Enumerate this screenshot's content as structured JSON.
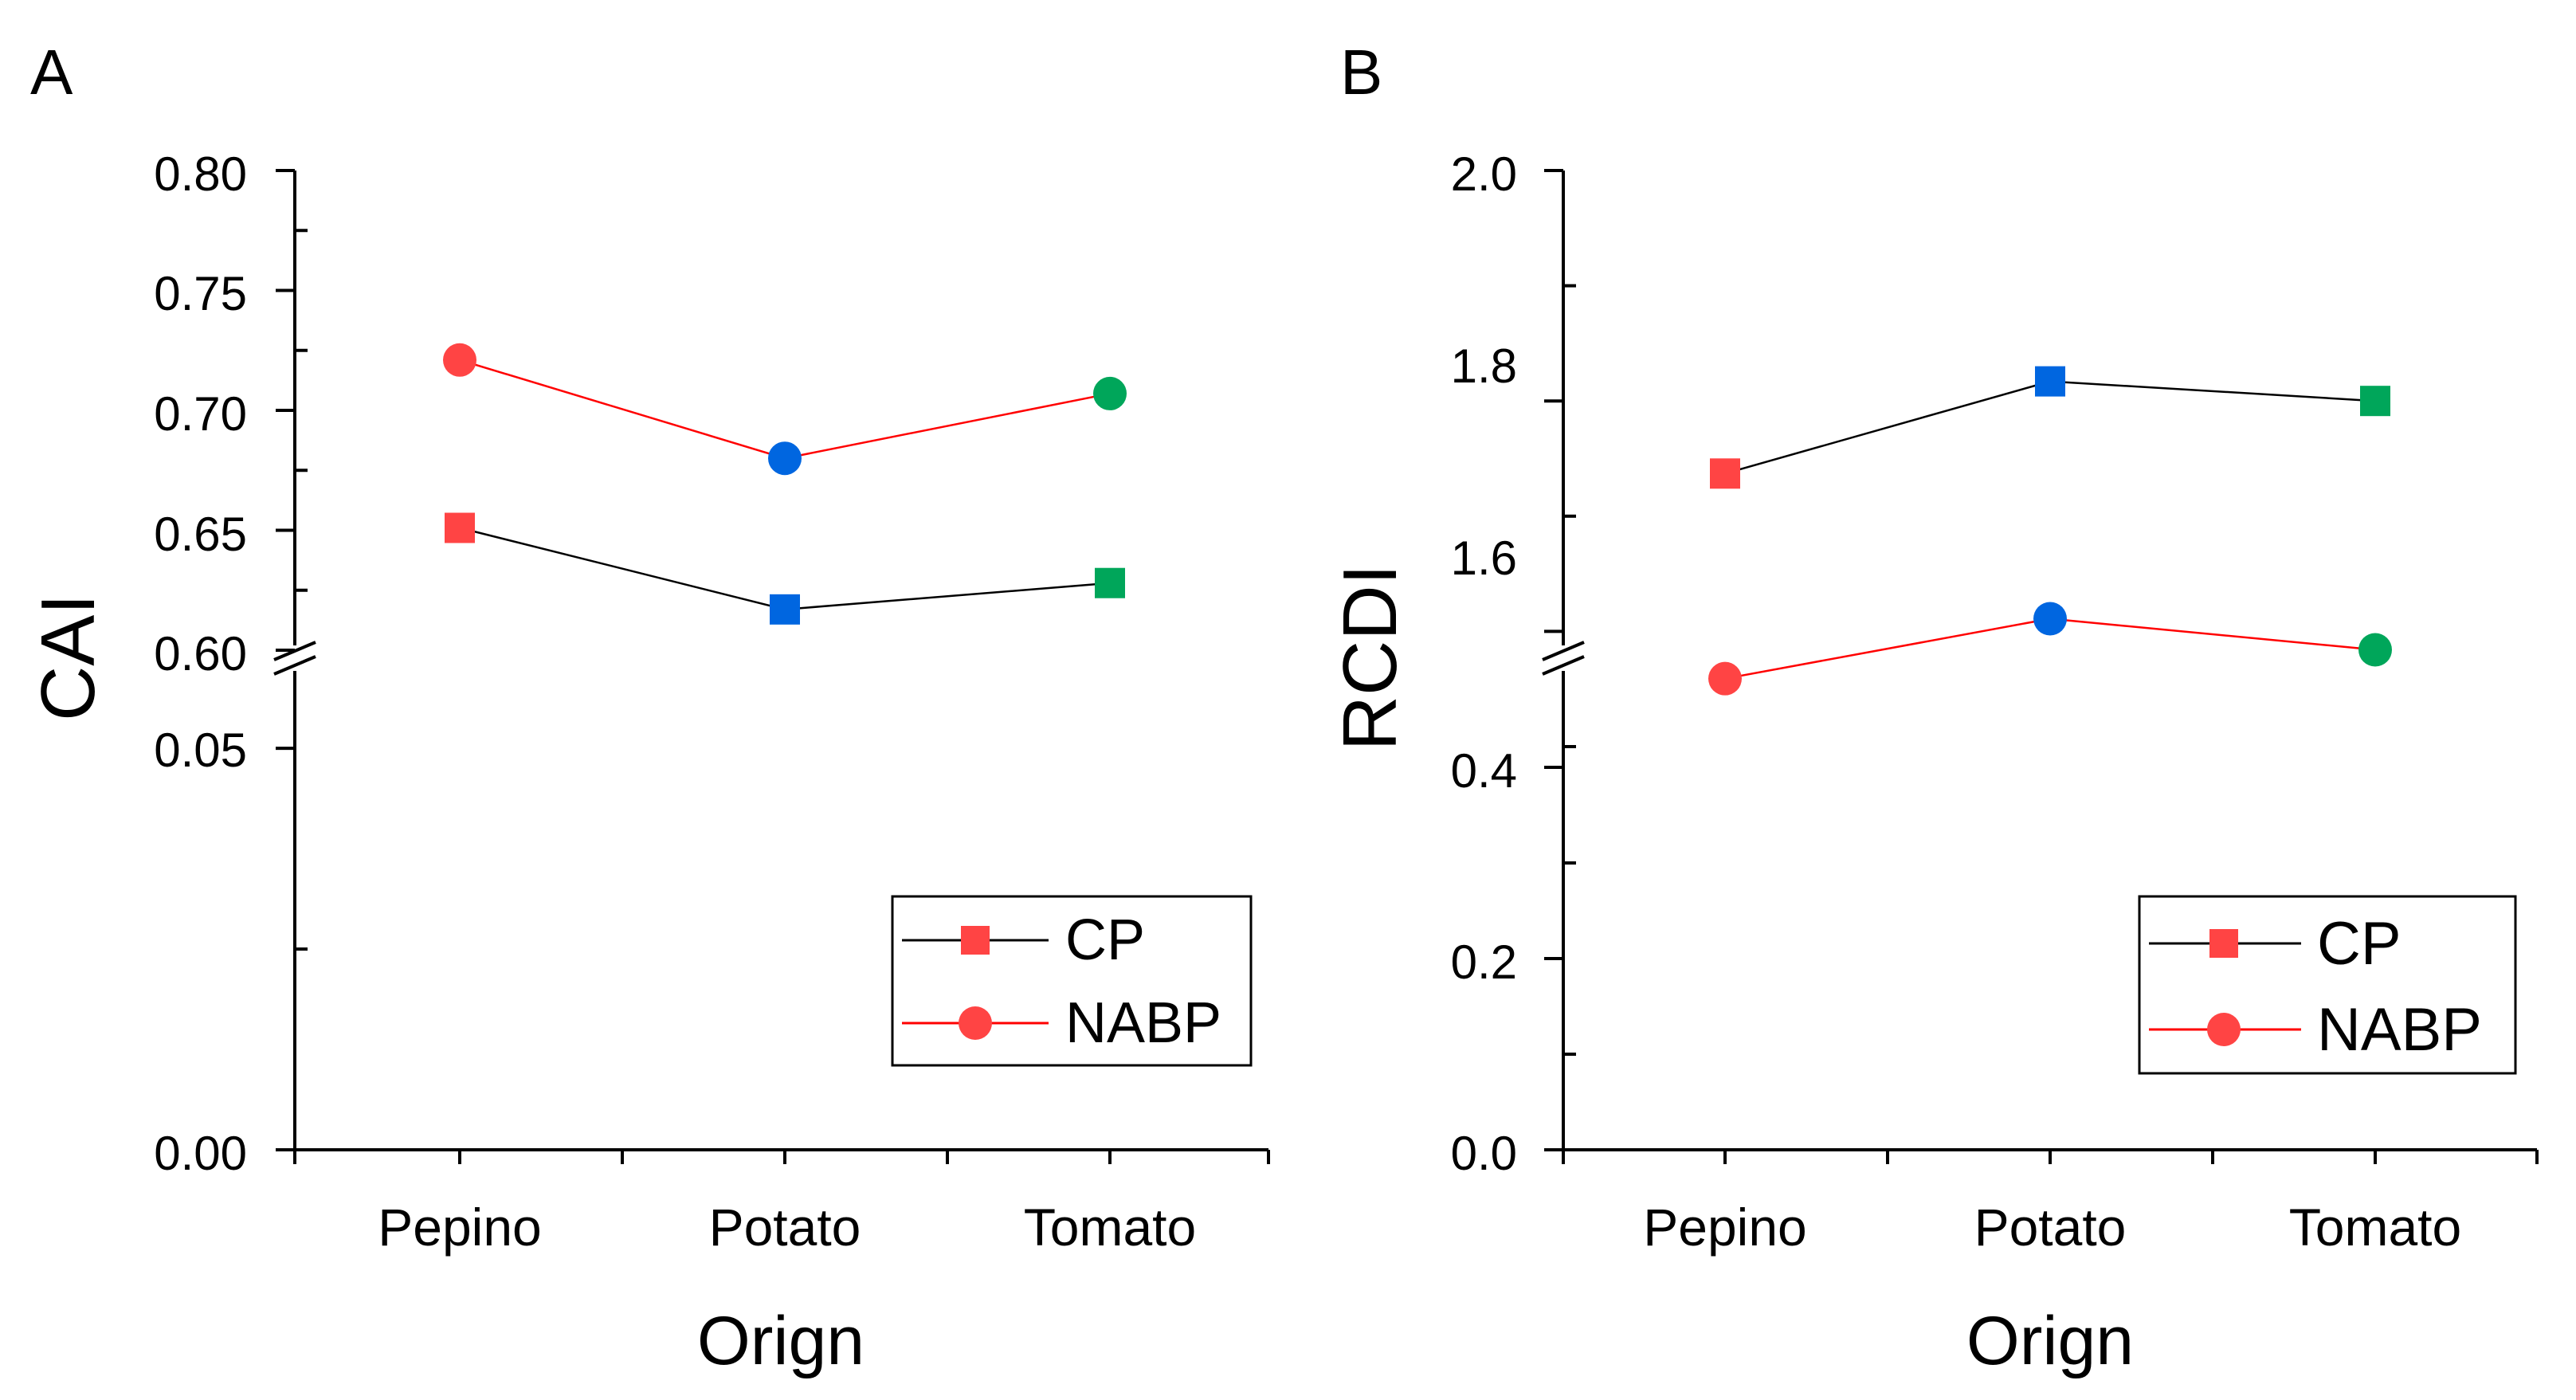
{
  "chart_data": [
    {
      "panel_label": "A",
      "type": "line",
      "xlabel": "Orign",
      "ylabel": "CAI",
      "categories": [
        "Pepino",
        "Potato",
        "Tomato"
      ],
      "point_colors": [
        "#ff4444",
        "#0066e0",
        "#00a65a"
      ],
      "axis_break": true,
      "ylim_lower": [
        0.0,
        0.065
      ],
      "ylim_upper": [
        0.6,
        0.8
      ],
      "yticks": [
        "0.00",
        "0.05",
        "0.60",
        "0.65",
        "0.70",
        "0.75",
        "0.80"
      ],
      "series": [
        {
          "name": "CP",
          "marker": "square",
          "line_color": "#000000",
          "values": [
            0.651,
            0.617,
            0.628
          ]
        },
        {
          "name": "NABP",
          "marker": "circle",
          "line_color": "#ff0000",
          "values": [
            0.721,
            0.68,
            0.707
          ]
        }
      ],
      "legend_position": "bottom-right"
    },
    {
      "panel_label": "B",
      "type": "line",
      "xlabel": "Orign",
      "ylabel": "RCDI",
      "categories": [
        "Pepino",
        "Potato",
        "Tomato"
      ],
      "point_colors": [
        "#ff4444",
        "#0066e0",
        "#00a65a"
      ],
      "axis_break": true,
      "ylim_lower": [
        0.0,
        0.5
      ],
      "ylim_upper": [
        1.5,
        2.0
      ],
      "yticks": [
        "0.0",
        "0.2",
        "0.4",
        "1.6",
        "1.8",
        "2.0"
      ],
      "series": [
        {
          "name": "CP",
          "marker": "square",
          "line_color": "#000000",
          "values": [
            1.737,
            1.817,
            1.8
          ]
        },
        {
          "name": "NABP",
          "marker": "circle",
          "line_color": "#ff0000",
          "values": [
            1.559,
            1.611,
            1.584
          ]
        }
      ],
      "legend_position": "bottom-right"
    }
  ]
}
